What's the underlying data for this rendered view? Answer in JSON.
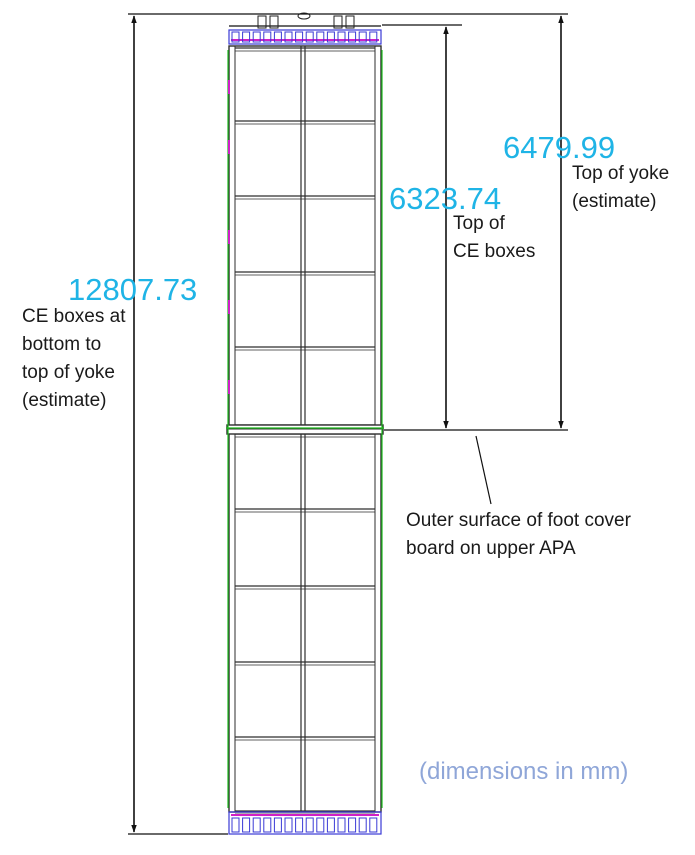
{
  "dimensions": {
    "total": {
      "value": "12807.73",
      "label_lines": [
        "CE boxes at",
        "bottom to",
        "top of yoke",
        "(estimate)"
      ]
    },
    "ce_boxes": {
      "value": "6323.74",
      "label_lines": [
        "Top of",
        "CE boxes"
      ]
    },
    "yoke": {
      "value": "6479.99",
      "label_lines": [
        "Top of yoke",
        "(estimate)"
      ]
    }
  },
  "callout": {
    "label_lines": [
      "Outer surface of foot cover",
      "board on upper APA"
    ]
  },
  "units_note": "(dimensions in mm)",
  "colors": {
    "dimension_text": "#1fb4e6",
    "units_text": "#8fa6d8",
    "frame_line": "#333333",
    "hardware_blue": "#3a3ad6",
    "hardware_magenta": "#d020c8",
    "edge_green": "#1fbf1f"
  },
  "frame": {
    "rows_per_apa": 5,
    "columns": 2,
    "apa_count": 2
  }
}
